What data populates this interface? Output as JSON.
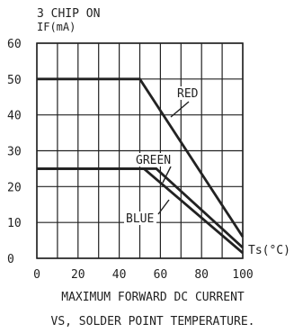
{
  "chart_data": {
    "type": "line",
    "title_line1": "3 CHIP ON",
    "ylabel": "IF(mA)",
    "xlabel": "Ts(°C)",
    "caption_line1": "MAXIMUM FORWARD DC CURRENT",
    "caption_line2": "VS, SOLDER POINT TEMPERATURE.",
    "xlim": [
      0,
      100
    ],
    "ylim": [
      0,
      60
    ],
    "x_ticks": [
      "0",
      "20",
      "40",
      "60",
      "80",
      "100"
    ],
    "y_ticks": [
      "0",
      "10",
      "20",
      "30",
      "40",
      "50",
      "60"
    ],
    "x_grid_step": 10,
    "y_grid_step": 10,
    "grid": true,
    "series": [
      {
        "name": "RED",
        "x": [
          0,
          50,
          100
        ],
        "y": [
          50,
          50,
          6
        ]
      },
      {
        "name": "GREEN",
        "x": [
          0,
          58,
          100
        ],
        "y": [
          25,
          25,
          3
        ]
      },
      {
        "name": "BLUE",
        "x": [
          0,
          52,
          100
        ],
        "y": [
          25,
          25,
          1.5
        ]
      }
    ],
    "colors": {
      "line": "#222222",
      "grid": "#222222",
      "background": "#ffffff"
    }
  }
}
